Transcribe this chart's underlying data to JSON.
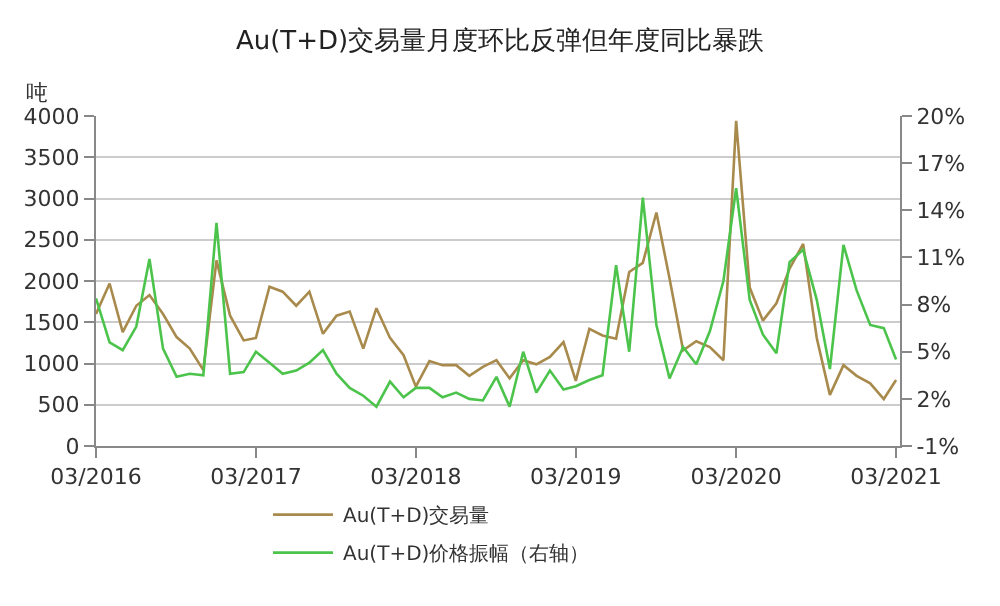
{
  "chart_data": {
    "type": "line",
    "title": "Au(T+D)交易量月度环比反弹但年度同比暴跌",
    "ylabel": "吨",
    "x": [
      "2016-03",
      "2016-04",
      "2016-05",
      "2016-06",
      "2016-07",
      "2016-08",
      "2016-09",
      "2016-10",
      "2016-11",
      "2016-12",
      "2017-01",
      "2017-02",
      "2017-03",
      "2017-04",
      "2017-05",
      "2017-06",
      "2017-07",
      "2017-08",
      "2017-09",
      "2017-10",
      "2017-11",
      "2017-12",
      "2018-01",
      "2018-02",
      "2018-03",
      "2018-04",
      "2018-05",
      "2018-06",
      "2018-07",
      "2018-08",
      "2018-09",
      "2018-10",
      "2018-11",
      "2018-12",
      "2019-01",
      "2019-02",
      "2019-03",
      "2019-04",
      "2019-05",
      "2019-06",
      "2019-07",
      "2019-08",
      "2019-09",
      "2019-10",
      "2019-11",
      "2019-12",
      "2020-01",
      "2020-02",
      "2020-03",
      "2020-04",
      "2020-05",
      "2020-06",
      "2020-07",
      "2020-08",
      "2020-09",
      "2020-10",
      "2020-11",
      "2020-12",
      "2021-01",
      "2021-02",
      "2021-03"
    ],
    "series": [
      {
        "name": "Au(T+D)交易量",
        "color": "#a88a4c",
        "values": [
          1600,
          1970,
          1380,
          1700,
          1830,
          1600,
          1320,
          1180,
          920,
          2250,
          1580,
          1280,
          1310,
          1930,
          1870,
          1700,
          1870,
          1360,
          1580,
          1630,
          1180,
          1670,
          1310,
          1100,
          720,
          1030,
          980,
          980,
          850,
          960,
          1040,
          820,
          1040,
          990,
          1080,
          1260,
          790,
          1420,
          1340,
          1300,
          2110,
          2220,
          2830,
          2030,
          1160,
          1270,
          1200,
          1040,
          3940,
          1920,
          1520,
          1730,
          2150,
          2450,
          1310,
          620,
          980,
          850,
          760,
          570,
          800
        ]
      },
      {
        "name": "Au(T+D)价格振幅（右轴）",
        "color": "#4cc44c",
        "axis": "y2",
        "values": [
          8.4,
          5.6,
          5.1,
          6.6,
          10.9,
          5.2,
          3.4,
          3.6,
          3.5,
          13.2,
          3.6,
          3.7,
          5.0,
          4.3,
          3.6,
          3.8,
          4.3,
          5.1,
          3.6,
          2.7,
          2.2,
          1.5,
          3.1,
          2.1,
          2.7,
          2.7,
          2.1,
          2.4,
          2.0,
          1.9,
          3.4,
          1.5,
          5.0,
          2.4,
          3.8,
          2.6,
          2.8,
          3.2,
          3.5,
          10.5,
          5.0,
          14.8,
          6.7,
          3.3,
          5.3,
          4.2,
          6.3,
          9.5,
          15.4,
          8.3,
          6.1,
          4.9,
          10.7,
          11.5,
          8.3,
          3.9,
          11.8,
          8.9,
          6.7,
          6.5,
          4.5
        ]
      }
    ],
    "xlim": [
      "2016-03-01",
      "2021-03-10"
    ],
    "xticks": [
      {
        "value": "2016-03-01",
        "label": "03/2016"
      },
      {
        "value": "2017-03-01",
        "label": "03/2017"
      },
      {
        "value": "2018-03-01",
        "label": "03/2018"
      },
      {
        "value": "2019-03-01",
        "label": "03/2019"
      },
      {
        "value": "2020-03-01",
        "label": "03/2020"
      },
      {
        "value": "2021-03-01",
        "label": "03/2021"
      }
    ],
    "ylim": [
      0,
      4000
    ],
    "yticks": [
      0,
      500,
      1000,
      1500,
      2000,
      2500,
      3000,
      3500,
      4000
    ],
    "y2lim": [
      -1,
      20
    ],
    "y2ticks": [
      {
        "value": -1,
        "label": "-1%"
      },
      {
        "value": 2,
        "label": "2%"
      },
      {
        "value": 5,
        "label": "5%"
      },
      {
        "value": 8,
        "label": "8%"
      },
      {
        "value": 11,
        "label": "11%"
      },
      {
        "value": 14,
        "label": "14%"
      },
      {
        "value": 17,
        "label": "17%"
      },
      {
        "value": 20,
        "label": "20%"
      }
    ],
    "grid": "y",
    "legend": "bottom",
    "marker": "none",
    "line_style": "solid"
  }
}
